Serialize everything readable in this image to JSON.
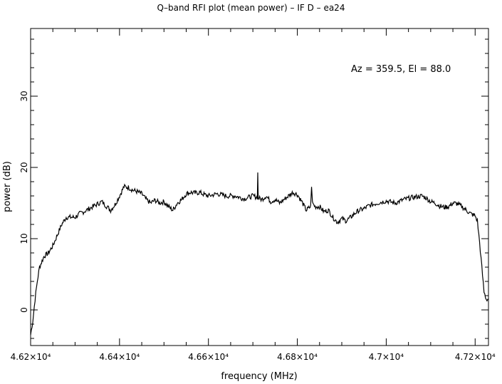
{
  "chart_data": {
    "type": "line",
    "title": "Q–band RFI plot (mean power) – IF D – ea24",
    "xlabel": "frequency (MHz)",
    "ylabel": "power (dB)",
    "annotation": "Az = 359.5, El = 88.0",
    "xlim": [
      46200,
      47230
    ],
    "ylim": [
      -5,
      39.5
    ],
    "grid": false,
    "legend": "none",
    "line_color": "#000000",
    "x_ticks": [
      {
        "value": 46200,
        "label": "4.62×10⁴"
      },
      {
        "value": 46400,
        "label": "4.64×10⁴"
      },
      {
        "value": 46600,
        "label": "4.66×10⁴"
      },
      {
        "value": 46800,
        "label": "4.68×10⁴"
      },
      {
        "value": 47000,
        "label": "4.7×10⁴"
      },
      {
        "value": 47200,
        "label": "4.72×10⁴"
      }
    ],
    "y_ticks": [
      {
        "value": 0,
        "label": "0"
      },
      {
        "value": 10,
        "label": "10"
      },
      {
        "value": 20,
        "label": "20"
      },
      {
        "value": 30,
        "label": "30"
      }
    ],
    "series": [
      {
        "x": [
          46200,
          46205,
          46210,
          46215,
          46220,
          46230,
          46240,
          46250,
          46260,
          46270,
          46280,
          46290,
          46300,
          46310,
          46320,
          46340,
          46360,
          46380,
          46390,
          46400,
          46410,
          46420,
          46430,
          46440,
          46450,
          46460,
          46470,
          46480,
          46490,
          46500,
          46510,
          46520,
          46530,
          46540,
          46550,
          46560,
          46570,
          46580,
          46590,
          46600,
          46620,
          46640,
          46660,
          46680,
          46700,
          46710,
          46711,
          46712,
          46720,
          46730,
          46740,
          46750,
          46760,
          46770,
          46780,
          46790,
          46800,
          46810,
          46820,
          46830,
          46832,
          46834,
          46840,
          46850,
          46860,
          46870,
          46880,
          46890,
          46900,
          46910,
          46920,
          46930,
          46940,
          46950,
          46960,
          46980,
          47000,
          47020,
          47040,
          47060,
          47080,
          47090,
          47100,
          47110,
          47120,
          47130,
          47140,
          47150,
          47160,
          47170,
          47180,
          47190,
          47200,
          47205,
          47210,
          47215,
          47220,
          47225,
          47230
        ],
        "y": [
          -3.5,
          -1.5,
          1.5,
          4.0,
          6.0,
          7.5,
          8.0,
          9.0,
          10.5,
          12.0,
          13.0,
          13.0,
          13.0,
          13.5,
          13.8,
          14.5,
          15.2,
          14.0,
          14.8,
          16.0,
          17.3,
          17.2,
          16.8,
          16.6,
          16.3,
          15.5,
          15.0,
          15.4,
          15.0,
          15.2,
          14.5,
          14.0,
          15.0,
          15.5,
          16.3,
          16.5,
          16.4,
          16.5,
          16.2,
          16.0,
          16.3,
          16.0,
          16.0,
          15.6,
          16.0,
          15.8,
          19.2,
          15.7,
          15.5,
          16.0,
          15.2,
          15.5,
          15.0,
          15.5,
          16.0,
          16.5,
          16.2,
          15.2,
          14.0,
          14.5,
          17.5,
          15.0,
          14.5,
          14.5,
          13.8,
          14.0,
          13.0,
          12.3,
          12.8,
          12.5,
          13.0,
          13.6,
          14.0,
          14.2,
          14.6,
          15.0,
          15.3,
          15.0,
          15.5,
          15.8,
          16.0,
          15.7,
          15.2,
          15.0,
          14.6,
          14.4,
          14.5,
          15.0,
          14.9,
          14.5,
          14.0,
          13.5,
          13.2,
          12.5,
          9.5,
          6.0,
          2.5,
          1.5,
          1.5
        ]
      }
    ]
  }
}
